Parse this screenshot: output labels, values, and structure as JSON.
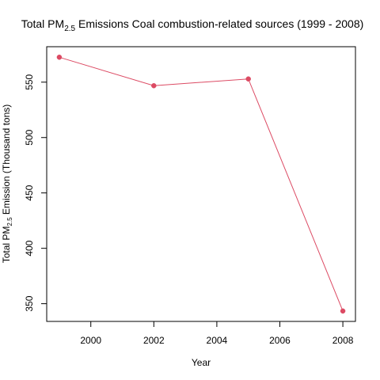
{
  "chart_data": {
    "type": "line",
    "title": {
      "prefix": "Total PM",
      "subscript": "2.5",
      "suffix": " Emissions Coal combustion-related sources (1999 - 2008)"
    },
    "xlabel": "Year",
    "ylabel": {
      "prefix": "Total PM",
      "subscript": "2.5",
      "suffix": " Emission (Thousand tons)"
    },
    "x": [
      1999,
      2002,
      2005,
      2008
    ],
    "series": [
      {
        "values": [
          572.5,
          546.8,
          552.9,
          343.4
        ],
        "color": "#dc4a63"
      }
    ],
    "xlim": [
      1998.6,
      2008.4
    ],
    "ylim": [
      334,
      582
    ],
    "x_ticks": [
      2000,
      2002,
      2004,
      2006,
      2008
    ],
    "y_ticks": [
      350,
      400,
      450,
      500,
      550
    ],
    "grid": false,
    "legend": "none",
    "marker": "filled-circle"
  }
}
